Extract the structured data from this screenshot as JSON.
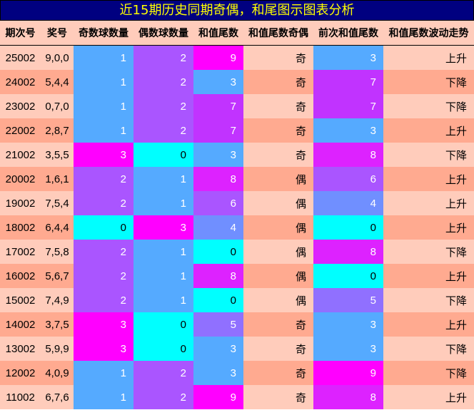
{
  "title": "近15期历史同期奇偶，和尾图示图表分析",
  "headers": [
    "期次号",
    "奖号",
    "奇数球数量",
    "偶数球数量",
    "和值尾数",
    "和值尾数奇偶",
    "前次和值尾数",
    "和值尾数波动走势"
  ],
  "colors": {
    "title_bg": "#000080",
    "title_text": "#ffff00",
    "row_light": "#ffccbb",
    "row_dark": "#ffaa90",
    "count": {
      "0": "#00ffff",
      "1": "#55aaff",
      "2": "#aa55ff",
      "3": "#ff00ff"
    },
    "tail": {
      "0": "#00ffff",
      "3": "#55aaff",
      "4": "#708fff",
      "5": "#9070ff",
      "6": "#aa55ff",
      "7": "#c133ff",
      "8": "#dd22ff",
      "9": "#ff00ff"
    }
  },
  "rows": [
    {
      "issue": "25002",
      "nums": "9,0,0",
      "odd": "1",
      "even": "2",
      "tail": "9",
      "parity": "奇",
      "prev": "3",
      "trend": "上升"
    },
    {
      "issue": "24002",
      "nums": "5,4,4",
      "odd": "1",
      "even": "2",
      "tail": "3",
      "parity": "奇",
      "prev": "7",
      "trend": "下降"
    },
    {
      "issue": "23002",
      "nums": "0,7,0",
      "odd": "1",
      "even": "2",
      "tail": "7",
      "parity": "奇",
      "prev": "7",
      "trend": "下降"
    },
    {
      "issue": "22002",
      "nums": "2,8,7",
      "odd": "1",
      "even": "2",
      "tail": "7",
      "parity": "奇",
      "prev": "3",
      "trend": "上升"
    },
    {
      "issue": "21002",
      "nums": "3,5,5",
      "odd": "3",
      "even": "0",
      "tail": "3",
      "parity": "奇",
      "prev": "8",
      "trend": "下降"
    },
    {
      "issue": "20002",
      "nums": "1,6,1",
      "odd": "2",
      "even": "1",
      "tail": "8",
      "parity": "偶",
      "prev": "6",
      "trend": "上升"
    },
    {
      "issue": "19002",
      "nums": "7,5,4",
      "odd": "2",
      "even": "1",
      "tail": "6",
      "parity": "偶",
      "prev": "4",
      "trend": "上升"
    },
    {
      "issue": "18002",
      "nums": "6,4,4",
      "odd": "0",
      "even": "3",
      "tail": "4",
      "parity": "偶",
      "prev": "0",
      "trend": "上升"
    },
    {
      "issue": "17002",
      "nums": "7,5,8",
      "odd": "2",
      "even": "1",
      "tail": "0",
      "parity": "偶",
      "prev": "8",
      "trend": "下降"
    },
    {
      "issue": "16002",
      "nums": "5,6,7",
      "odd": "2",
      "even": "1",
      "tail": "8",
      "parity": "偶",
      "prev": "0",
      "trend": "上升"
    },
    {
      "issue": "15002",
      "nums": "7,4,9",
      "odd": "2",
      "even": "1",
      "tail": "0",
      "parity": "偶",
      "prev": "5",
      "trend": "下降"
    },
    {
      "issue": "14002",
      "nums": "3,7,5",
      "odd": "3",
      "even": "0",
      "tail": "5",
      "parity": "奇",
      "prev": "3",
      "trend": "上升"
    },
    {
      "issue": "13002",
      "nums": "5,9,9",
      "odd": "3",
      "even": "0",
      "tail": "3",
      "parity": "奇",
      "prev": "3",
      "trend": "下降"
    },
    {
      "issue": "12002",
      "nums": "4,0,9",
      "odd": "1",
      "even": "2",
      "tail": "3",
      "parity": "奇",
      "prev": "9",
      "trend": "下降"
    },
    {
      "issue": "11002",
      "nums": "6,7,6",
      "odd": "1",
      "even": "2",
      "tail": "9",
      "parity": "奇",
      "prev": "8",
      "trend": "上升"
    }
  ]
}
